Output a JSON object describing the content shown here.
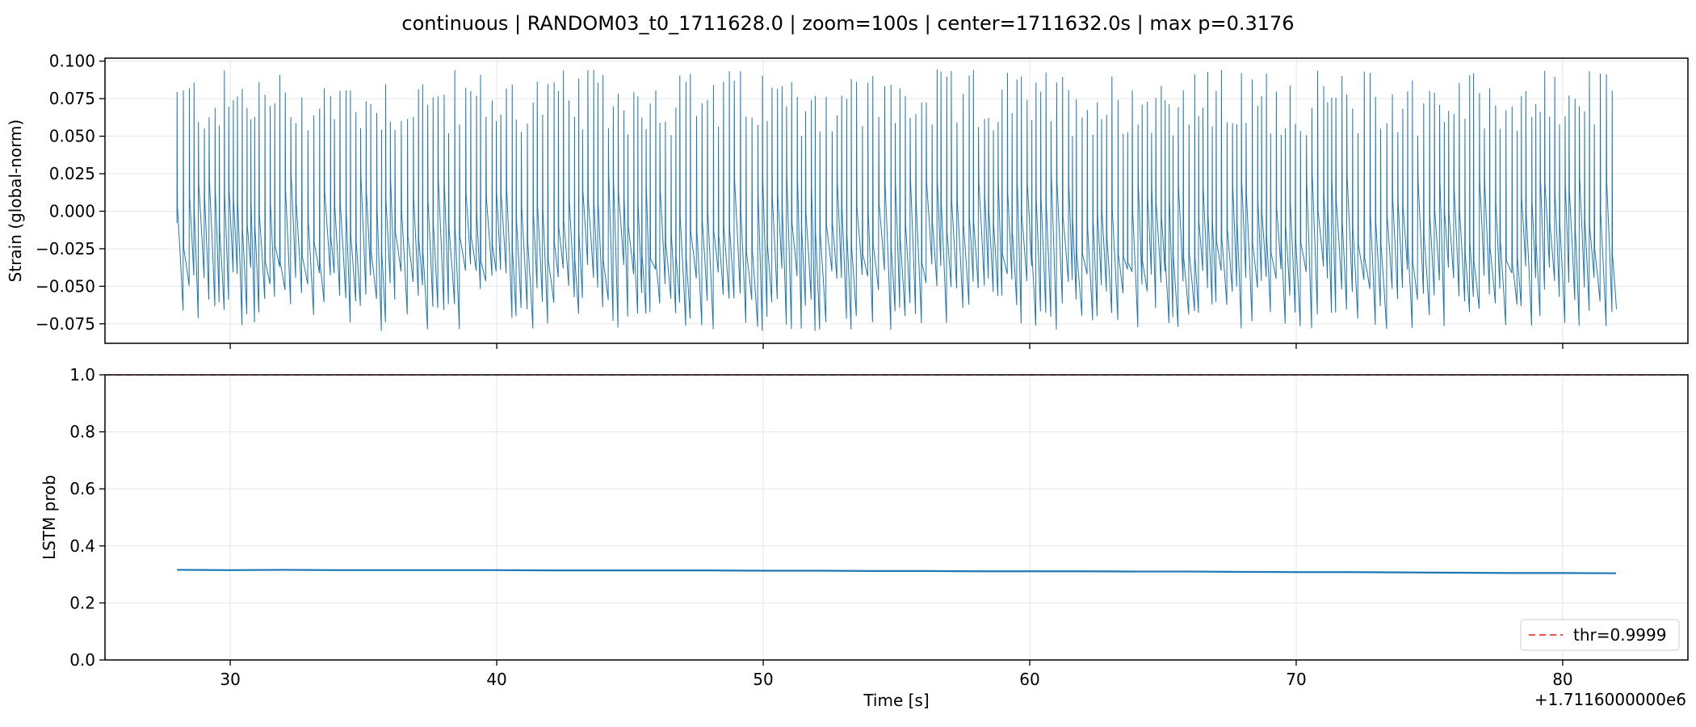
{
  "suptitle": "continuous | RANDOM03_t0_1711628.0 | zoom=100s | center=1711632.0s | max p=0.3176",
  "colors": {
    "strain_line": "#1f77b4",
    "prob_line": "#1f77b4",
    "threshold_line": "#ff4d4d",
    "grid": "#e6e6e6",
    "axes": "#000000"
  },
  "chart_data": [
    {
      "type": "line",
      "title": "",
      "xlabel": "",
      "ylabel": "Strain (global-norm)",
      "xlim": [
        25.3,
        84.7
      ],
      "ylim": [
        -0.088,
        0.102
      ],
      "x_offset_label": "",
      "xticks": [
        30,
        40,
        50,
        60,
        70,
        80
      ],
      "yticks": [
        -0.075,
        -0.05,
        -0.025,
        0.0,
        0.025,
        0.05,
        0.075,
        0.1
      ],
      "ytick_labels": [
        "−0.075",
        "−0.050",
        "−0.025",
        "0.000",
        "0.025",
        "0.050",
        "0.075",
        "0.100"
      ],
      "grid": true,
      "series": [
        {
          "x_range": [
            28.0,
            82.0
          ],
          "peak_range": [
            0.05,
            0.095
          ],
          "trough_range": [
            -0.08,
            -0.035
          ],
          "spike_spacing_s": 0.19
        }
      ]
    },
    {
      "type": "line",
      "title": "",
      "xlabel": "Time [s]",
      "ylabel": "LSTM prob",
      "xlim": [
        25.3,
        84.7
      ],
      "ylim": [
        0.0,
        1.0
      ],
      "x_offset_label": "+1.7116000000e6",
      "xticks": [
        30,
        40,
        50,
        60,
        70,
        80
      ],
      "xtick_labels": [
        "30",
        "40",
        "50",
        "60",
        "70",
        "80"
      ],
      "yticks": [
        0.0,
        0.2,
        0.4,
        0.6,
        0.8,
        1.0
      ],
      "ytick_labels": [
        "0.0",
        "0.2",
        "0.4",
        "0.6",
        "0.8",
        "1.0"
      ],
      "grid": true,
      "threshold": 0.9999,
      "legend": {
        "placement": "lower-right",
        "entries": [
          "thr=0.9999"
        ]
      },
      "series": [
        {
          "x": [
            28,
            30,
            32,
            34,
            36,
            38,
            40,
            42,
            44,
            46,
            48,
            50,
            52,
            54,
            56,
            58,
            60,
            62,
            64,
            66,
            68,
            70,
            72,
            74,
            76,
            78,
            80,
            82
          ],
          "y": [
            0.316,
            0.315,
            0.316,
            0.315,
            0.315,
            0.315,
            0.315,
            0.314,
            0.314,
            0.314,
            0.314,
            0.313,
            0.313,
            0.312,
            0.312,
            0.311,
            0.311,
            0.311,
            0.31,
            0.31,
            0.309,
            0.308,
            0.308,
            0.307,
            0.306,
            0.305,
            0.305,
            0.304
          ]
        }
      ]
    }
  ]
}
